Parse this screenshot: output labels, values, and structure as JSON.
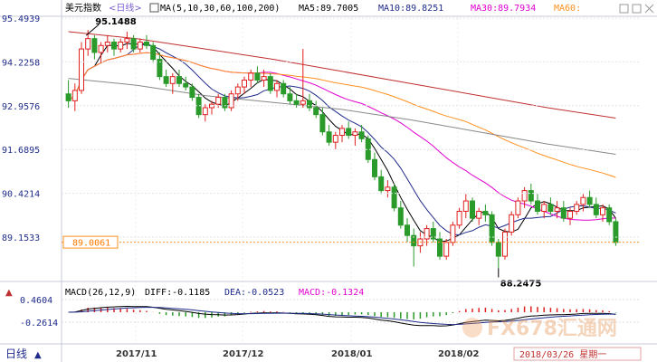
{
  "header": {
    "name": "美元指数",
    "period": "<日线>",
    "ma_label": "MA(5,10,30,60,100,200)",
    "ma5": "MA5:89.7005",
    "ma10": "MA10:89.8251",
    "ma30": "MA30:89.7934",
    "ma60": "MA60:"
  },
  "macd": {
    "label": "MACD(26,12,9)",
    "diff": "DIFF:-0.1185",
    "dea": "DEA:-0.0523",
    "macd": "MACD:-0.1324",
    "yticks": [
      "0.4604",
      "-0.2614"
    ]
  },
  "footer": {
    "period_tab": "日线",
    "date_label": "2018/03/26 星期一",
    "watermark": "FX678汇通网"
  },
  "colors": {
    "up": "#e02020",
    "down": "#2a9a2a",
    "ma5": "#000000",
    "ma10": "#1f2b8a",
    "ma30": "#e000d0",
    "ma60": "#ff9020",
    "ma100": "#888888",
    "ma200": "#c03030",
    "current": "#ff9020"
  },
  "chart_data": {
    "type": "candlestick",
    "y_ticks": [
      95.4939,
      94.2258,
      92.9576,
      91.6895,
      90.4214,
      89.1533
    ],
    "x_ticks": [
      "2017/11",
      "2017/12",
      "2018/01",
      "2018/02"
    ],
    "current_price": "89.0061",
    "annotations": {
      "high": "95.1488",
      "low": "88.2475"
    },
    "candles": [
      [
        93.3,
        93.7,
        92.9,
        93.1
      ],
      [
        93.1,
        93.6,
        92.8,
        93.4
      ],
      [
        93.4,
        94.8,
        93.3,
        94.6
      ],
      [
        94.6,
        95.15,
        94.4,
        94.9
      ],
      [
        94.9,
        95.0,
        94.3,
        94.5
      ],
      [
        94.5,
        94.8,
        94.2,
        94.7
      ],
      [
        94.7,
        95.0,
        94.5,
        94.8
      ],
      [
        94.8,
        94.9,
        94.4,
        94.6
      ],
      [
        94.6,
        94.9,
        94.5,
        94.8
      ],
      [
        94.8,
        95.1,
        94.6,
        94.9
      ],
      [
        94.9,
        95.0,
        94.5,
        94.6
      ],
      [
        94.6,
        94.9,
        94.5,
        94.8
      ],
      [
        94.8,
        95.0,
        94.6,
        94.7
      ],
      [
        94.7,
        94.8,
        94.2,
        94.3
      ],
      [
        94.3,
        94.5,
        93.7,
        93.8
      ],
      [
        93.8,
        94.0,
        93.5,
        93.6
      ],
      [
        93.6,
        93.9,
        93.3,
        93.8
      ],
      [
        93.8,
        94.0,
        93.5,
        93.6
      ],
      [
        93.6,
        93.8,
        93.4,
        93.5
      ],
      [
        93.5,
        93.6,
        93.1,
        93.2
      ],
      [
        93.2,
        93.3,
        92.6,
        92.7
      ],
      [
        92.7,
        93.0,
        92.5,
        92.9
      ],
      [
        92.9,
        93.1,
        92.7,
        93.0
      ],
      [
        93.0,
        93.3,
        92.9,
        93.2
      ],
      [
        93.2,
        93.3,
        92.8,
        92.9
      ],
      [
        92.9,
        93.4,
        92.8,
        93.3
      ],
      [
        93.3,
        93.6,
        93.1,
        93.5
      ],
      [
        93.5,
        93.8,
        93.3,
        93.7
      ],
      [
        93.7,
        94.0,
        93.5,
        93.9
      ],
      [
        93.9,
        94.1,
        93.6,
        93.7
      ],
      [
        93.7,
        94.0,
        93.5,
        93.8
      ],
      [
        93.8,
        93.9,
        93.3,
        93.4
      ],
      [
        93.4,
        93.7,
        93.2,
        93.6
      ],
      [
        93.6,
        93.7,
        93.2,
        93.3
      ],
      [
        93.3,
        93.5,
        93.0,
        93.1
      ],
      [
        93.1,
        93.3,
        92.9,
        93.0
      ],
      [
        93.0,
        94.6,
        92.9,
        93.1
      ],
      [
        93.1,
        93.3,
        92.8,
        92.9
      ],
      [
        92.9,
        93.1,
        92.6,
        92.7
      ],
      [
        92.7,
        92.9,
        92.1,
        92.2
      ],
      [
        92.2,
        92.4,
        91.8,
        91.9
      ],
      [
        91.9,
        92.2,
        91.7,
        92.1
      ],
      [
        92.1,
        92.4,
        91.9,
        92.3
      ],
      [
        92.3,
        92.5,
        92.0,
        92.1
      ],
      [
        92.1,
        92.3,
        91.8,
        92.2
      ],
      [
        92.2,
        92.4,
        91.9,
        92.0
      ],
      [
        92.0,
        92.1,
        91.3,
        91.4
      ],
      [
        91.4,
        91.6,
        90.8,
        90.9
      ],
      [
        90.9,
        91.1,
        90.4,
        90.5
      ],
      [
        90.5,
        90.8,
        90.3,
        90.6
      ],
      [
        90.6,
        90.7,
        89.9,
        90.0
      ],
      [
        90.0,
        90.2,
        89.4,
        89.5
      ],
      [
        89.5,
        89.7,
        89.0,
        89.2
      ],
      [
        89.2,
        89.4,
        88.3,
        88.9
      ],
      [
        88.9,
        89.3,
        88.7,
        89.1
      ],
      [
        89.1,
        89.5,
        88.9,
        89.4
      ],
      [
        89.4,
        89.6,
        89.0,
        89.1
      ],
      [
        89.1,
        89.3,
        88.5,
        88.6
      ],
      [
        88.6,
        89.1,
        88.5,
        89.0
      ],
      [
        89.0,
        89.6,
        88.9,
        89.5
      ],
      [
        89.5,
        90.0,
        89.4,
        89.9
      ],
      [
        89.9,
        90.4,
        89.7,
        90.2
      ],
      [
        90.2,
        90.3,
        89.6,
        89.7
      ],
      [
        89.7,
        90.0,
        89.5,
        89.9
      ],
      [
        89.9,
        90.1,
        89.6,
        89.8
      ],
      [
        89.8,
        89.9,
        88.9,
        89.0
      ],
      [
        89.0,
        89.1,
        88.25,
        88.6
      ],
      [
        88.6,
        89.4,
        88.5,
        89.3
      ],
      [
        89.3,
        89.9,
        89.2,
        89.8
      ],
      [
        89.8,
        90.3,
        89.7,
        90.2
      ],
      [
        90.2,
        90.6,
        90.0,
        90.5
      ],
      [
        90.5,
        90.7,
        90.1,
        90.2
      ],
      [
        90.2,
        90.4,
        89.8,
        89.9
      ],
      [
        89.9,
        90.2,
        89.7,
        90.1
      ],
      [
        90.1,
        90.3,
        89.8,
        89.9
      ],
      [
        89.9,
        90.2,
        89.7,
        90.0
      ],
      [
        90.0,
        90.2,
        89.6,
        89.7
      ],
      [
        89.7,
        90.0,
        89.5,
        89.9
      ],
      [
        89.9,
        90.2,
        89.8,
        90.1
      ],
      [
        90.1,
        90.4,
        89.9,
        90.3
      ],
      [
        90.3,
        90.5,
        90.0,
        90.1
      ],
      [
        90.1,
        90.3,
        89.7,
        89.8
      ],
      [
        89.8,
        90.1,
        89.6,
        90.0
      ],
      [
        90.0,
        90.1,
        89.5,
        89.6
      ],
      [
        89.6,
        89.7,
        88.9,
        89.0
      ]
    ],
    "ma100": [
      93.75,
      93.55,
      93.25,
      93.05,
      92.85,
      92.55,
      92.2,
      91.85,
      91.55
    ],
    "ma200": [
      95.1,
      94.9,
      94.6,
      94.3,
      93.95,
      93.6,
      93.25,
      92.9,
      92.6
    ]
  }
}
